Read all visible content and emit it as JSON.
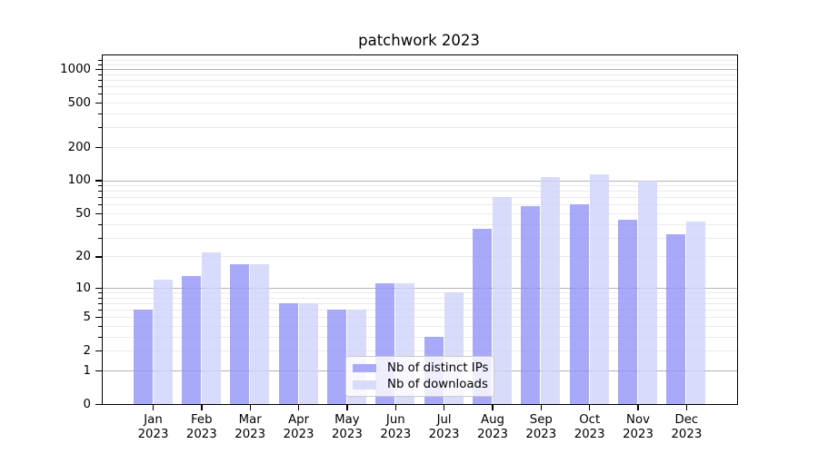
{
  "title": "patchwork 2023",
  "year": "2023",
  "colors": {
    "ips_bar": "rgba(148,148,248,0.8)",
    "downloads_bar": "rgba(208,210,249,0.8)",
    "ips_solid": "#a9a9f9",
    "downloads_solid": "#d9dbfa",
    "grid_major": "#b3b3b3",
    "grid_minor": "#eaeaea",
    "spine": "#000000"
  },
  "legend": {
    "items": [
      {
        "label": "Nb of distinct IPs",
        "series": "ips"
      },
      {
        "label": "Nb of downloads",
        "series": "downloads"
      }
    ]
  },
  "y_axis": {
    "tick_labels": [
      "1000",
      "500",
      "200",
      "100",
      "50",
      "20",
      "10",
      "5",
      "2",
      "1",
      "0"
    ],
    "tick_values": [
      1000,
      500,
      200,
      100,
      50,
      20,
      10,
      5,
      2,
      1,
      0
    ]
  },
  "x_axis": {
    "months": [
      "Jan",
      "Feb",
      "Mar",
      "Apr",
      "May",
      "Jun",
      "Jul",
      "Aug",
      "Sep",
      "Oct",
      "Nov",
      "Dec"
    ]
  },
  "chart_data": {
    "type": "bar",
    "title": "patchwork 2023",
    "categories": [
      "Jan 2023",
      "Feb 2023",
      "Mar 2023",
      "Apr 2023",
      "May 2023",
      "Jun 2023",
      "Jul 2023",
      "Aug 2023",
      "Sep 2023",
      "Oct 2023",
      "Nov 2023",
      "Dec 2023"
    ],
    "series": [
      {
        "name": "Nb of distinct IPs",
        "values": [
          6,
          13,
          17,
          7,
          6,
          11,
          3,
          36,
          58,
          60,
          44,
          32
        ]
      },
      {
        "name": "Nb of downloads",
        "values": [
          12,
          22,
          17,
          7,
          6,
          11,
          9,
          70,
          107,
          113,
          100,
          42
        ]
      }
    ],
    "xlabel": "",
    "ylabel": "",
    "yscale": "log1p",
    "ylim": [
      0,
      1300
    ],
    "yticks": [
      0,
      1,
      2,
      5,
      10,
      20,
      50,
      100,
      200,
      500,
      1000
    ],
    "grid": true,
    "legend_position": "lower center"
  }
}
